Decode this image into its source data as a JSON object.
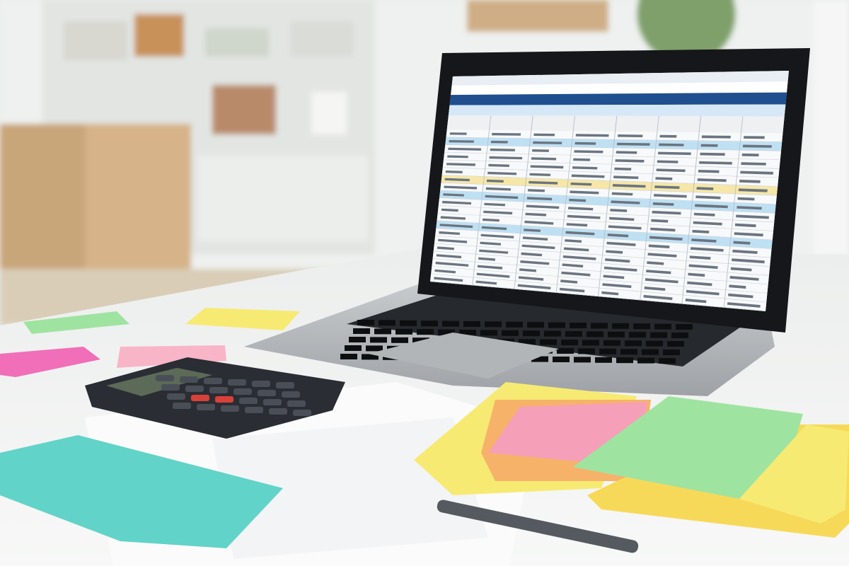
{
  "scene": {
    "description_tags": [
      "laptop",
      "spreadsheet",
      "sticky-notes",
      "calculator",
      "desk"
    ],
    "colors": {
      "wall": "#eef1ef",
      "desk": "#f4f5f4",
      "cabinet": "#c9a57a",
      "shelf": "#e4e6e3",
      "laptop_body": "#b9bcbf",
      "bezel": "#15171a",
      "screen_header": "#1f4f8f",
      "row_blue": "#bfe0f3",
      "row_yellow": "#f6e7a8",
      "row_white": "#f7f9fa",
      "note_yellow": "#f7ea73",
      "note_pink": "#f59fb8",
      "note_hotpink": "#f06fb8",
      "note_green": "#9fe3a0",
      "note_teal": "#62d3c8",
      "note_orange": "#f7b26a",
      "calculator": "#2a2d33",
      "calc_red": "#d8413a"
    },
    "spreadsheet": {
      "row_pattern": [
        "white",
        "blue",
        "white",
        "white",
        "white",
        "white",
        "yellow",
        "white",
        "blue",
        "white",
        "white",
        "white",
        "blue",
        "white",
        "white",
        "white",
        "white",
        "white",
        "white",
        "white"
      ],
      "columns": 8
    }
  }
}
